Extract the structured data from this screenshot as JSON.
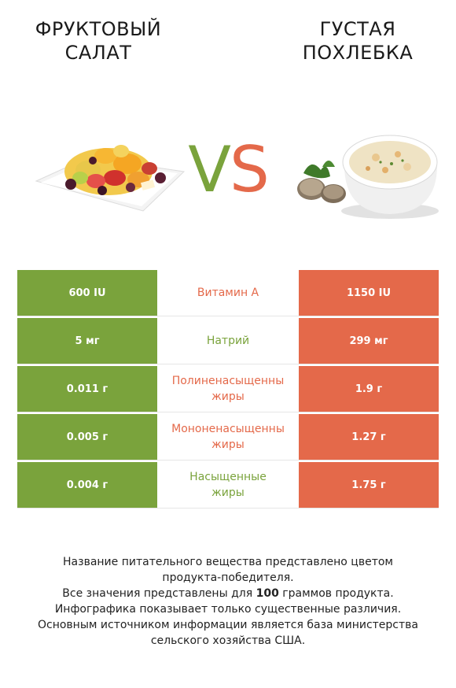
{
  "left_food": {
    "title_line1": "ФРУКТОВЫЙ",
    "title_line2": "САЛАТ",
    "image": "fruit-salad-image"
  },
  "right_food": {
    "title_line1": "ГУСТАЯ",
    "title_line2": "ПОХЛЕБКА",
    "image": "clam-chowder-image"
  },
  "vs": {
    "v": "V",
    "s": "S"
  },
  "colors": {
    "left": "#7aa33c",
    "right": "#e4694a"
  },
  "rows": [
    {
      "left": "600 IU",
      "nutrient_line1": "Витамин А",
      "nutrient_line2": "",
      "right": "1150 IU",
      "winner": "right"
    },
    {
      "left": "5 мг",
      "nutrient_line1": "Натрий",
      "nutrient_line2": "",
      "right": "299 мг",
      "winner": "left"
    },
    {
      "left": "0.011 г",
      "nutrient_line1": "Полиненасыщенны",
      "nutrient_line2": "жиры",
      "right": "1.9 г",
      "winner": "right"
    },
    {
      "left": "0.005 г",
      "nutrient_line1": "Мононенасыщенны",
      "nutrient_line2": "жиры",
      "right": "1.27 г",
      "winner": "right"
    },
    {
      "left": "0.004 г",
      "nutrient_line1": "Насыщенные",
      "nutrient_line2": "жиры",
      "right": "1.75 г",
      "winner": "left"
    }
  ],
  "footer": {
    "line1": "Название питательного вещества представлено цветом",
    "line2": "продукта-победителя.",
    "line3_pre": "Все значения представлены для ",
    "line3_bold": "100",
    "line3_post": " граммов продукта.",
    "line4": "Инфографика показывает только существенные различия.",
    "line5": "Основным источником информации является база министерства",
    "line6": "сельского хозяйства США."
  }
}
